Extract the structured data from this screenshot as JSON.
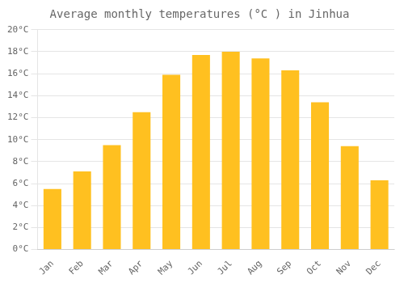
{
  "chart_data": {
    "type": "bar",
    "title": "Average monthly temperatures (°C ) in Jinhua",
    "categories": [
      "Jan",
      "Feb",
      "Mar",
      "Apr",
      "May",
      "Jun",
      "Jul",
      "Aug",
      "Sep",
      "Oct",
      "Nov",
      "Dec"
    ],
    "values": [
      5.5,
      7.1,
      9.5,
      12.5,
      15.9,
      17.7,
      18.0,
      17.4,
      16.3,
      13.4,
      9.4,
      6.3
    ],
    "color": "#FFC020",
    "ylim": [
      0,
      20
    ],
    "yticks": [
      {
        "value": 0,
        "label": "0°C"
      },
      {
        "value": 2,
        "label": "2°C"
      },
      {
        "value": 4,
        "label": "4°C"
      },
      {
        "value": 6,
        "label": "6°C"
      },
      {
        "value": 8,
        "label": "8°C"
      },
      {
        "value": 10,
        "label": "10°C"
      },
      {
        "value": 12,
        "label": "12°C"
      },
      {
        "value": 14,
        "label": "14°C"
      },
      {
        "value": 16,
        "label": "16°C"
      },
      {
        "value": 18,
        "label": "18°C"
      },
      {
        "value": 20,
        "label": "20°C"
      }
    ],
    "grid": true
  }
}
